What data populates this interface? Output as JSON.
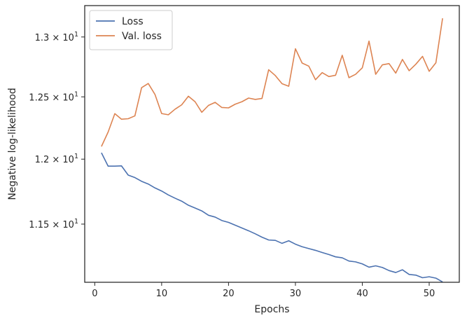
{
  "chart_data": {
    "type": "line",
    "title": "",
    "xlabel": "Epochs",
    "ylabel": "Negative log-likelihood",
    "xlim": [
      -1.5,
      54.5
    ],
    "ylim": [
      11.07,
      13.27
    ],
    "yscale": "log",
    "grid": false,
    "legend_position": "top-left",
    "x_ticks": [
      0,
      10,
      20,
      30,
      40,
      50
    ],
    "x_tick_labels": [
      "0",
      "10",
      "20",
      "30",
      "40",
      "50"
    ],
    "y_ticks": [
      11.5,
      12.0,
      12.5,
      13.0
    ],
    "y_tick_labels": [
      {
        "mant": "1.15",
        "exp": "1"
      },
      {
        "mant": "1.2",
        "exp": "1"
      },
      {
        "mant": "1.25",
        "exp": "1"
      },
      {
        "mant": "1.3",
        "exp": "1"
      }
    ],
    "x": [
      1,
      2,
      3,
      4,
      5,
      6,
      7,
      8,
      9,
      10,
      11,
      12,
      13,
      14,
      15,
      16,
      17,
      18,
      19,
      20,
      21,
      22,
      23,
      24,
      25,
      26,
      27,
      28,
      29,
      30,
      31,
      32,
      33,
      34,
      35,
      36,
      37,
      38,
      39,
      40,
      41,
      42,
      43,
      44,
      45,
      46,
      47,
      48,
      49,
      50,
      51,
      52
    ],
    "series": [
      {
        "name": "Loss",
        "color": "#4c72b0",
        "values": [
          12.05,
          11.945,
          11.945,
          11.947,
          11.875,
          11.856,
          11.827,
          11.806,
          11.776,
          11.752,
          11.722,
          11.697,
          11.674,
          11.643,
          11.622,
          11.6,
          11.567,
          11.553,
          11.527,
          11.513,
          11.492,
          11.471,
          11.45,
          11.427,
          11.402,
          11.381,
          11.378,
          11.356,
          11.375,
          11.35,
          11.331,
          11.317,
          11.304,
          11.288,
          11.273,
          11.256,
          11.249,
          11.225,
          11.219,
          11.204,
          11.18,
          11.19,
          11.178,
          11.155,
          11.141,
          11.161,
          11.127,
          11.122,
          11.103,
          11.11,
          11.1,
          11.072
        ]
      },
      {
        "name": "Val. loss",
        "color": "#dd8452",
        "values": [
          12.1,
          12.215,
          12.363,
          12.318,
          12.322,
          12.345,
          12.575,
          12.61,
          12.52,
          12.364,
          12.354,
          12.399,
          12.435,
          12.505,
          12.46,
          12.374,
          12.43,
          12.455,
          12.413,
          12.41,
          12.44,
          12.46,
          12.49,
          12.479,
          12.487,
          12.724,
          12.675,
          12.608,
          12.587,
          12.9,
          12.78,
          12.754,
          12.641,
          12.7,
          12.667,
          12.678,
          12.845,
          12.658,
          12.686,
          12.74,
          12.965,
          12.686,
          12.765,
          12.775,
          12.696,
          12.81,
          12.716,
          12.77,
          12.836,
          12.711,
          12.782,
          13.16
        ]
      }
    ]
  }
}
